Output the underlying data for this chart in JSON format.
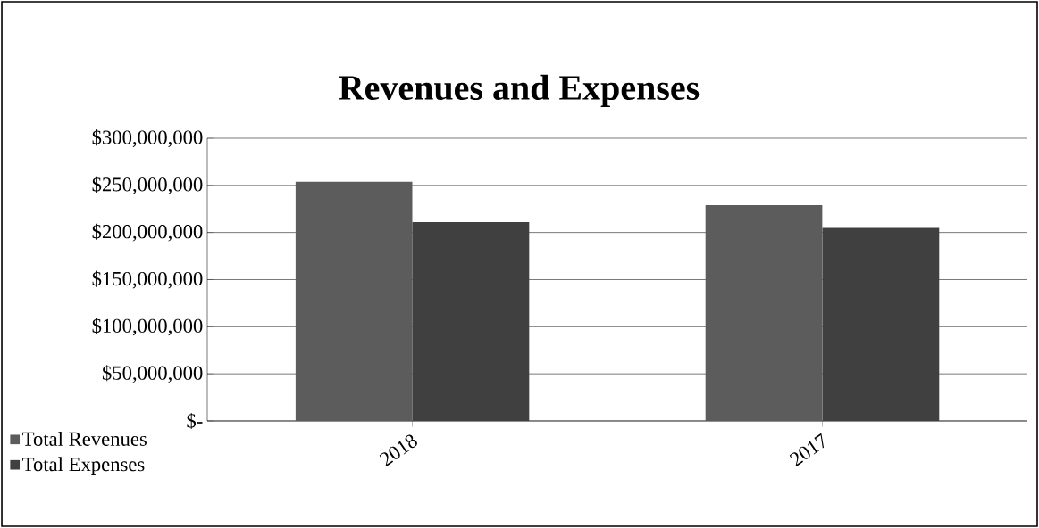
{
  "chart_data": {
    "type": "bar",
    "title": "Revenues and Expenses",
    "categories": [
      "2018",
      "2017"
    ],
    "series": [
      {
        "name": "Total Revenues",
        "color": "#5c5c5c",
        "values": [
          254000000,
          229000000
        ]
      },
      {
        "name": "Total Expenses",
        "color": "#404040",
        "values": [
          211000000,
          205000000
        ]
      }
    ],
    "ylim": [
      0,
      300000000
    ],
    "yticks": [
      {
        "value": 0,
        "label": "$-"
      },
      {
        "value": 50000000,
        "label": "$50,000,000"
      },
      {
        "value": 100000000,
        "label": "$100,000,000"
      },
      {
        "value": 150000000,
        "label": "$150,000,000"
      },
      {
        "value": 200000000,
        "label": "$200,000,000"
      },
      {
        "value": 250000000,
        "label": "$250,000,000"
      },
      {
        "value": 300000000,
        "label": "$300,000,000"
      }
    ],
    "grid": "y",
    "legend": "bottom left"
  }
}
